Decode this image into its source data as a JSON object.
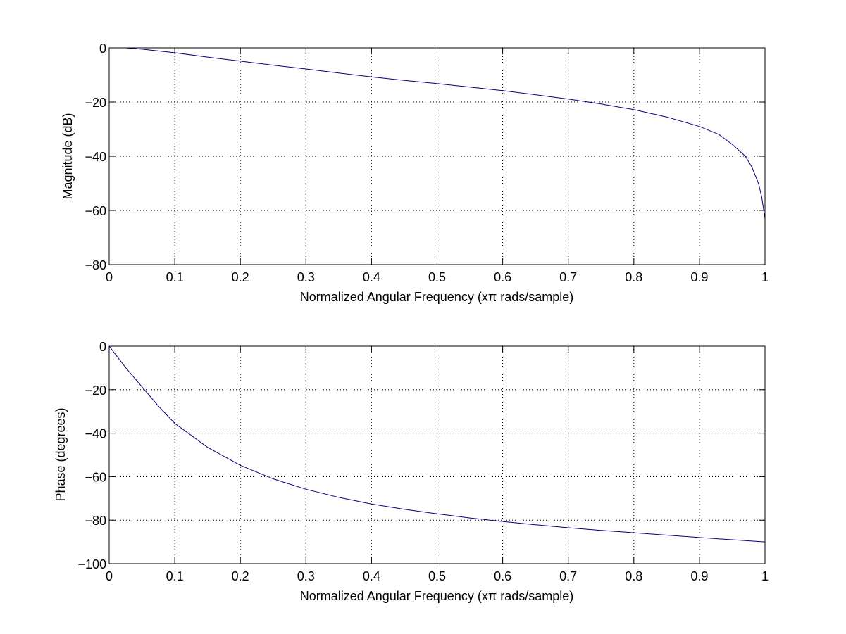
{
  "figure": {
    "background": "#ffffff",
    "line_color": "#00007f"
  },
  "chart_data": [
    {
      "type": "line",
      "title": "",
      "xlabel": "Normalized Angular Frequency  (xπ rads/sample)",
      "ylabel": "Magnitude (dB)",
      "xlim": [
        0,
        1
      ],
      "ylim": [
        -80,
        0
      ],
      "grid": true,
      "xticks": [
        0,
        0.1,
        0.2,
        0.3,
        0.4,
        0.5,
        0.6,
        0.7,
        0.8,
        0.9,
        1
      ],
      "xtick_labels": [
        "0",
        "0.1",
        "0.2",
        "0.3",
        "0.4",
        "0.5",
        "0.6",
        "0.7",
        "0.8",
        "0.9",
        "1"
      ],
      "yticks": [
        -80,
        -60,
        -40,
        -20,
        0
      ],
      "ytick_labels": [
        "−80",
        "−60",
        "−40",
        "−20",
        "0"
      ],
      "series": [
        {
          "name": "Magnitude",
          "color": "#00007f",
          "x": [
            0.025,
            0.05,
            0.1,
            0.15,
            0.2,
            0.25,
            0.3,
            0.35,
            0.4,
            0.45,
            0.5,
            0.55,
            0.6,
            0.65,
            0.7,
            0.75,
            0.8,
            0.85,
            0.9,
            0.93,
            0.95,
            0.97,
            0.98,
            0.99,
            0.995,
            1.0
          ],
          "y": [
            0,
            -0.5,
            -1.8,
            -3.4,
            -4.9,
            -6.4,
            -7.8,
            -9.3,
            -10.7,
            -12.0,
            -13.2,
            -14.5,
            -15.8,
            -17.3,
            -18.9,
            -20.7,
            -22.8,
            -25.5,
            -29.0,
            -32.0,
            -35.6,
            -40.0,
            -44.0,
            -50.0,
            -55.0,
            -63.0
          ]
        }
      ]
    },
    {
      "type": "line",
      "title": "",
      "xlabel": "Normalized Angular Frequency  (xπ rads/sample)",
      "ylabel": "Phase (degrees)",
      "xlim": [
        0,
        1
      ],
      "ylim": [
        -100,
        0
      ],
      "grid": true,
      "xticks": [
        0,
        0.1,
        0.2,
        0.3,
        0.4,
        0.5,
        0.6,
        0.7,
        0.8,
        0.9,
        1
      ],
      "xtick_labels": [
        "0",
        "0.1",
        "0.2",
        "0.3",
        "0.4",
        "0.5",
        "0.6",
        "0.7",
        "0.8",
        "0.9",
        "1"
      ],
      "yticks": [
        -100,
        -80,
        -60,
        -40,
        -20,
        0
      ],
      "ytick_labels": [
        "−100",
        "−80",
        "−60",
        "−40",
        "−20",
        "0"
      ],
      "series": [
        {
          "name": "Phase",
          "color": "#00007f",
          "x": [
            0,
            0.025,
            0.05,
            0.075,
            0.1,
            0.15,
            0.2,
            0.25,
            0.3,
            0.35,
            0.4,
            0.45,
            0.5,
            0.55,
            0.6,
            0.65,
            0.7,
            0.75,
            0.8,
            0.85,
            0.9,
            0.95,
            1.0
          ],
          "y": [
            0,
            -9.8,
            -18.7,
            -27.5,
            -35.5,
            -46.5,
            -54.8,
            -61.0,
            -65.8,
            -69.5,
            -72.6,
            -75.0,
            -77.1,
            -79.0,
            -80.6,
            -82.1,
            -83.5,
            -84.7,
            -85.8,
            -86.9,
            -88.0,
            -89.0,
            -90.0
          ]
        }
      ]
    }
  ]
}
